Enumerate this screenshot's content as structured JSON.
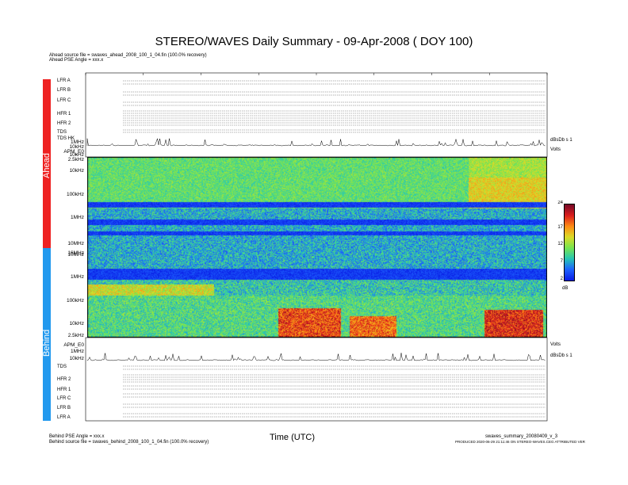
{
  "title": "STEREO/WAVES Daily Summary - 09-Apr-2008 ( DOY 100)",
  "header": {
    "ahead_source": "Ahead source file = swaves_ahead_2008_100_1_04.fin (100.0% recovery)",
    "ahead_pse": "Ahead PSE Angle = xxx.x"
  },
  "footer": {
    "behind_pse": "Behind PSE Angle = xxx.x",
    "behind_source": "Behind source file = swaves_behind_2008_100_1_04.fin (100.0% recovery)",
    "summary_file": "swaves_summary_20080409_v_3",
    "produced": "PRODUCED 2020-06-29 21:11:46 ON STEREO-WAVES.CEG ATTRIBUTED VER"
  },
  "sidebar": {
    "ahead_label": "Ahead",
    "behind_label": "Behind",
    "ahead_color": "#ee2222",
    "behind_color": "#2299ee"
  },
  "ahead_rows": [
    "LFR A",
    "LFR B",
    "LFR C",
    "HFR 1",
    "HFR 2",
    "TDS",
    "TDS HK"
  ],
  "behind_rows": [
    "TDS",
    "HFR 2",
    "HFR 1",
    "LFR C",
    "LFR B",
    "LFR A"
  ],
  "ahead_spectro_labels": [
    "2.5kHz",
    "10kHz",
    "100kHz",
    "1MHz",
    "10MHz",
    "16MHz"
  ],
  "behind_spectro_labels": [
    "10MHz",
    "1MHz",
    "100kHz",
    "10kHz",
    "2.5kHz"
  ],
  "ahead_mini_labels": [
    "1MHz",
    "10kHz",
    "APM_E0",
    "10kHz"
  ],
  "behind_mini_labels": [
    "APM_E0",
    "1MHz",
    "10kHz"
  ],
  "right_labels": {
    "volts": "Volts",
    "dbsdb": "dBsDb s 1"
  },
  "xaxis_title": "Time (UTC)",
  "chart_data": {
    "type": "heatmap",
    "title": "STEREO/WAVES Daily Summary - 09-Apr-2008 ( DOY 100)",
    "xlabel": "Time (UTC)",
    "colorbar": {
      "ticks": [
        2,
        7,
        12,
        17,
        24
      ],
      "unit": "dB",
      "range": [
        2,
        24
      ]
    },
    "colors": [
      "#0a1ee6",
      "#1e64ff",
      "#28c8b4",
      "#78e650",
      "#dcdc28",
      "#ff8c14",
      "#dc1e1e",
      "#780a28"
    ]
  }
}
